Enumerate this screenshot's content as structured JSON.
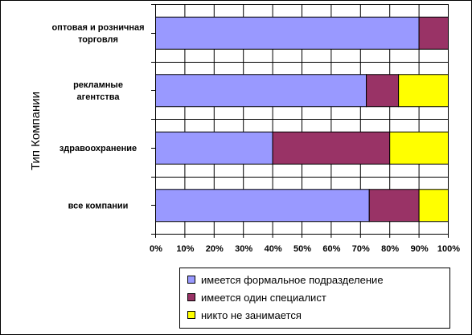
{
  "chart_data": {
    "type": "bar",
    "orientation": "horizontal",
    "stacked": true,
    "percent": true,
    "categories": [
      "оптовая и розничная торговля",
      "рекламные агентства",
      "здравоохранение",
      "все компании"
    ],
    "category_label_lines": [
      [
        "оптовая и розничная",
        "торговля"
      ],
      [
        "рекламные",
        "агентства"
      ],
      [
        "здравоохранение"
      ],
      [
        "все компании"
      ]
    ],
    "series": [
      {
        "name": "имеется формальное подразделение",
        "color": "#9999ff",
        "values": [
          90,
          72,
          40,
          73
        ]
      },
      {
        "name": "имеется один специалист",
        "color": "#993366",
        "values": [
          10,
          11,
          40,
          17
        ]
      },
      {
        "name": "никто не занимается",
        "color": "#ffff00",
        "values": [
          0,
          17,
          20,
          10
        ]
      }
    ],
    "xlim": [
      0,
      100
    ],
    "xticks": [
      "0%",
      "10%",
      "20%",
      "30%",
      "40%",
      "50%",
      "60%",
      "70%",
      "80%",
      "90%",
      "100%"
    ],
    "ylabel": "Тип Компании",
    "xlabel": "",
    "title": "",
    "grid": true,
    "legend": "bottom-right"
  }
}
